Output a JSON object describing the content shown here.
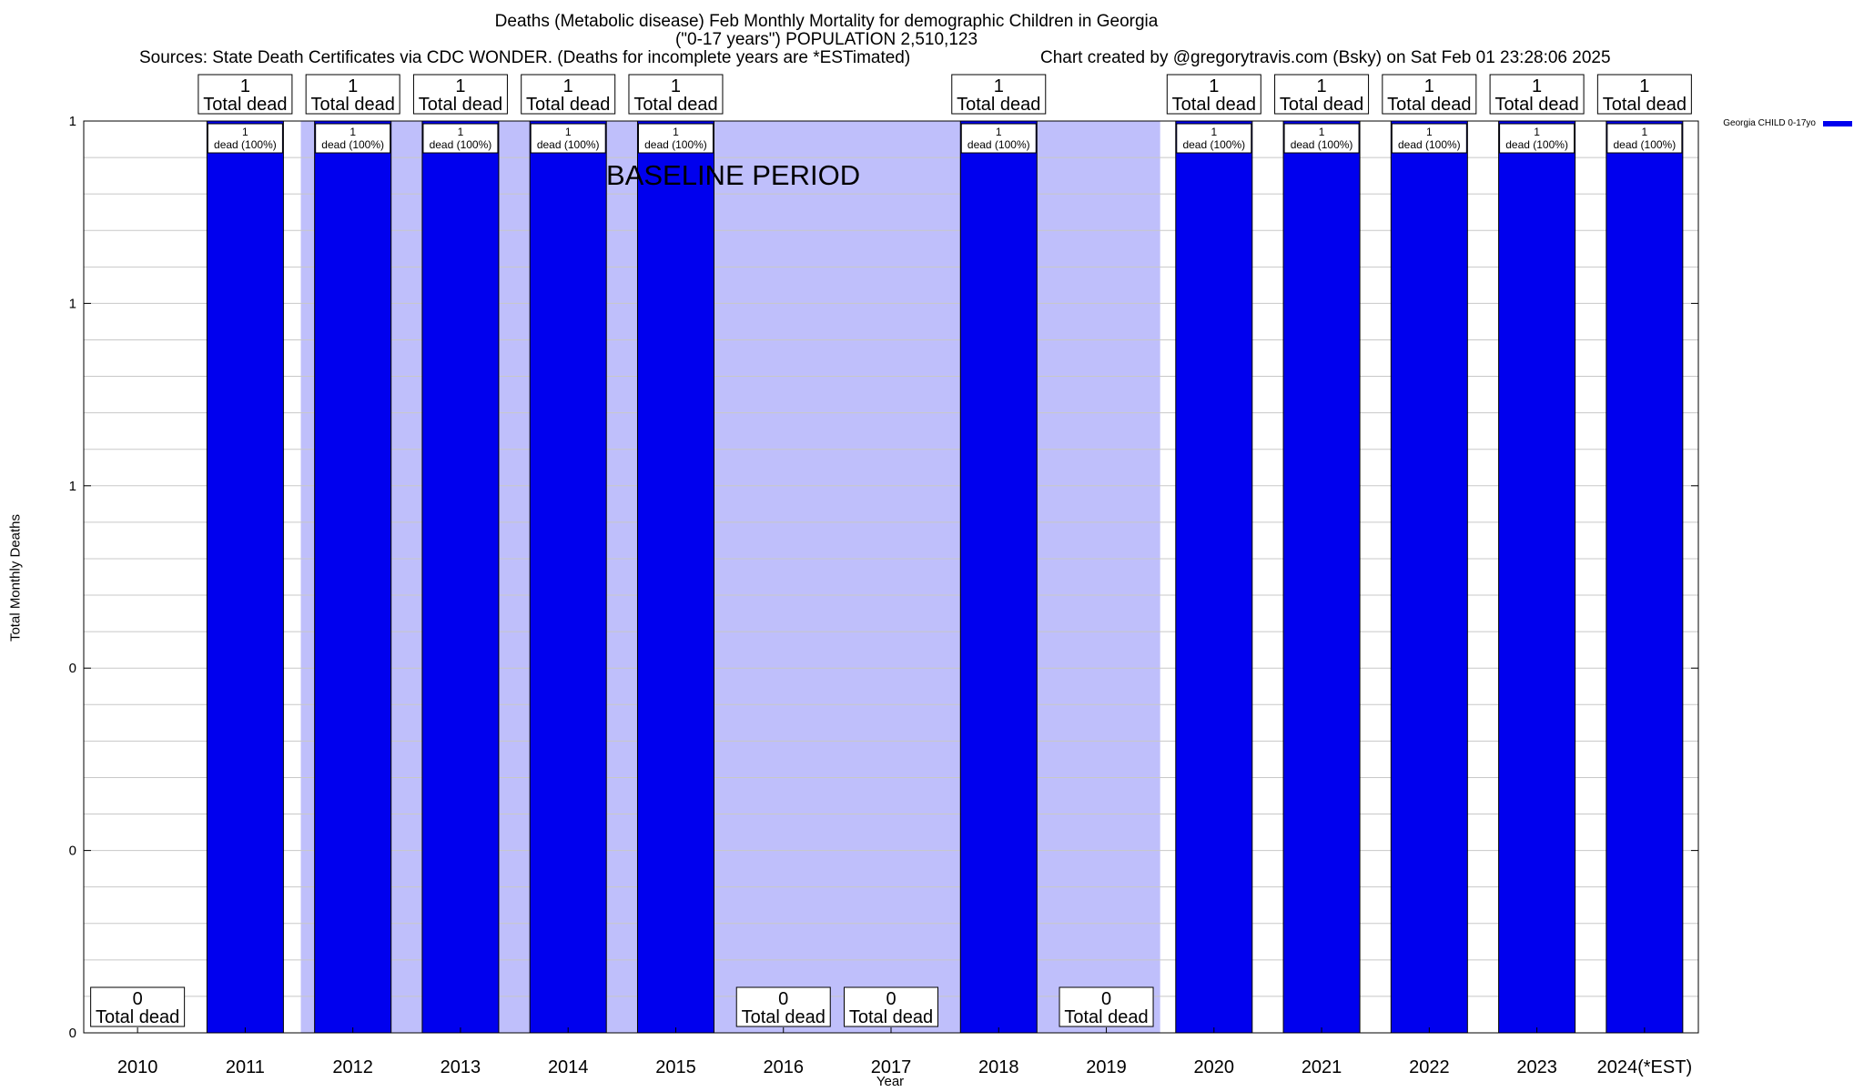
{
  "chart_data": {
    "type": "bar",
    "title": "Deaths (Metabolic disease) Feb Monthly Mortality for demographic Children in Georgia",
    "subtitle": "(\"0-17 years\") POPULATION 2,510,123",
    "source": "Sources: State Death Certificates via CDC WONDER. (Deaths for incomplete years are *ESTimated)",
    "credit": "Chart created by @gregorytravis.com (Bsky) on Sat Feb 01 23:28:06 2025",
    "xlabel": "Year",
    "ylabel": "Total Monthly Deaths",
    "ylim": [
      0,
      1
    ],
    "y_tick_labels": [
      "0",
      "0",
      "0",
      "1",
      "1",
      "1"
    ],
    "categories": [
      "2010",
      "2011",
      "2012",
      "2013",
      "2014",
      "2015",
      "2016",
      "2017",
      "2018",
      "2019",
      "2020",
      "2021",
      "2022",
      "2023",
      "2024(*EST)"
    ],
    "series": [
      {
        "name": "Georgia CHILD 0-17yo",
        "values": [
          0,
          1,
          1,
          1,
          1,
          1,
          0,
          0,
          1,
          0,
          1,
          1,
          1,
          1,
          1
        ]
      }
    ],
    "top_labels": [
      "0",
      "1",
      "1",
      "1",
      "1",
      "1",
      "0",
      "0",
      "1",
      "0",
      "1",
      "1",
      "1",
      "1",
      "1"
    ],
    "total_dead_text": "Total dead",
    "bar_label_count": "1",
    "bar_label_text": "dead (100%)",
    "baseline_label": "BASELINE PERIOD",
    "baseline_range": [
      "2012",
      "2019"
    ],
    "legend_position": "top-right",
    "colors": {
      "bar": "#0000ee",
      "baseline": "#bfbffb",
      "grid": "#c8c8c8"
    }
  }
}
